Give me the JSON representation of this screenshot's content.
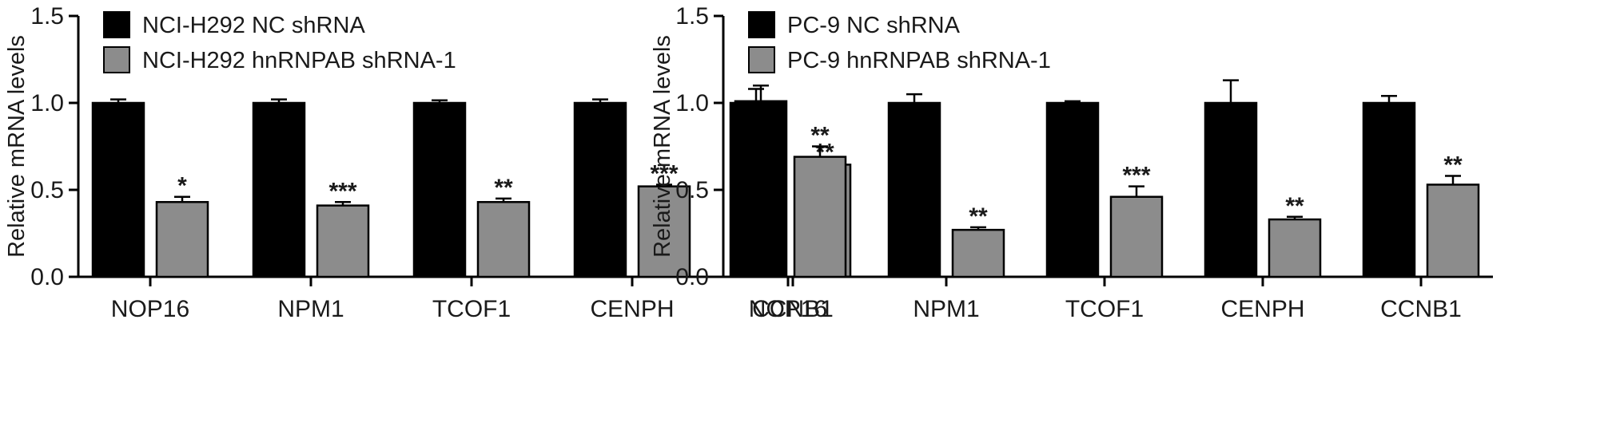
{
  "chart_data": [
    {
      "type": "bar",
      "ylabel": "Relative mRNA levels",
      "ylim": [
        0,
        1.5
      ],
      "yticks": [
        "0.0",
        "0.5",
        "1.0",
        "1.5"
      ],
      "categories": [
        "NOP16",
        "NPM1",
        "TCOF1",
        "CENPH",
        "CCNB1"
      ],
      "grid": false,
      "legend_position": "top-left",
      "series": [
        {
          "name": "NCI-H292 NC shRNA",
          "color": "#000000",
          "values": [
            1.0,
            1.0,
            1.0,
            1.0,
            1.01
          ],
          "errors": [
            0.02,
            0.02,
            0.015,
            0.02,
            0.09
          ],
          "significance": [
            "",
            "",
            "",
            "",
            ""
          ]
        },
        {
          "name": "NCI-H292 hnRNPAB shRNA-1",
          "color": "#8c8c8c",
          "values": [
            0.43,
            0.41,
            0.43,
            0.52,
            0.645
          ],
          "errors": [
            0.03,
            0.02,
            0.02,
            0.01,
            0.008
          ],
          "significance": [
            "*",
            "***",
            "**",
            "***",
            "**"
          ]
        }
      ]
    },
    {
      "type": "bar",
      "ylabel": "Relative mRNA levels",
      "ylim": [
        0,
        1.5
      ],
      "yticks": [
        "0.0",
        "0.5",
        "1.0",
        "1.5"
      ],
      "categories": [
        "NOP16",
        "NPM1",
        "TCOF1",
        "CENPH",
        "CCNB1"
      ],
      "grid": false,
      "legend_position": "top-left",
      "series": [
        {
          "name": "PC-9 NC shRNA",
          "color": "#000000",
          "values": [
            1.0,
            1.0,
            1.0,
            1.0,
            1.0
          ],
          "errors": [
            0.08,
            0.05,
            0.01,
            0.13,
            0.04
          ],
          "significance": [
            "",
            "",
            "",
            "",
            ""
          ]
        },
        {
          "name": "PC-9 hnRNPAB shRNA-1",
          "color": "#8c8c8c",
          "values": [
            0.69,
            0.27,
            0.46,
            0.33,
            0.53
          ],
          "errors": [
            0.06,
            0.015,
            0.06,
            0.015,
            0.05
          ],
          "significance": [
            "**",
            "**",
            "***",
            "**",
            "**"
          ]
        }
      ]
    }
  ]
}
